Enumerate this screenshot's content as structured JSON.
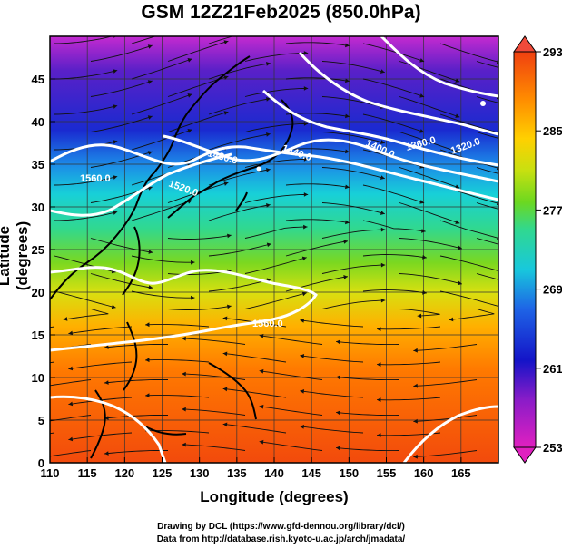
{
  "title": "GSM 12Z21Feb2025 (850.0hPa)",
  "axes": {
    "xlabel": "Longitude (degrees)",
    "ylabel": "Latitude  (degrees)",
    "xlim": [
      110,
      170
    ],
    "ylim": [
      0,
      50
    ],
    "xticks": [
      "110",
      "115",
      "120",
      "125",
      "130",
      "135",
      "140",
      "145",
      "150",
      "155",
      "160",
      "165"
    ],
    "yticks": [
      "0",
      "5",
      "10",
      "15",
      "20",
      "25",
      "30",
      "35",
      "40",
      "45"
    ],
    "grid": true
  },
  "colorbar": {
    "ticks": [
      "253",
      "261",
      "269",
      "277",
      "285",
      "293"
    ],
    "min": 253,
    "max": 293,
    "colors": [
      "#e020c0",
      "#8a1cc8",
      "#1414c8",
      "#1e64e6",
      "#18c8dc",
      "#30d890",
      "#6cd820",
      "#c8e010",
      "#ffd000",
      "#ff8c00",
      "#f04010"
    ]
  },
  "contour_labels": [
    "1560.0",
    "1520.0",
    "1480.0",
    "1440.0",
    "1400.0",
    "1360.0",
    "1320.0",
    "1560.0"
  ],
  "credits": {
    "line1": "Drawing by DCL (https://www.gfd-dennou.org/library/dcl/)",
    "line2": "Data from http://database.rish.kyoto-u.ac.jp/arch/jmadata/"
  }
}
